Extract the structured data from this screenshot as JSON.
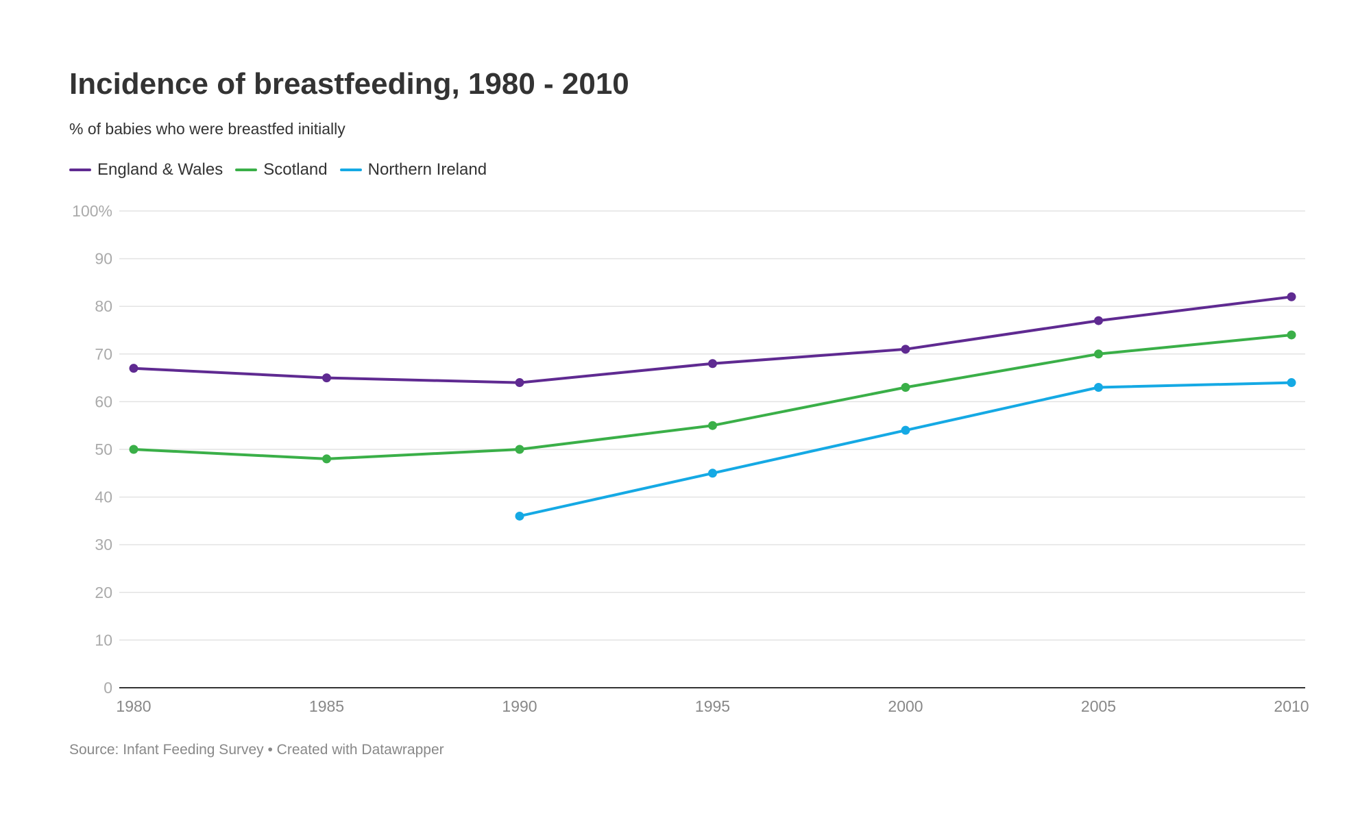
{
  "header": {
    "title": "Incidence of breastfeeding, 1980 - 2010",
    "subtitle": "% of babies who were breastfed initially"
  },
  "footer": {
    "source": "Source: Infant Feeding Survey • Created with Datawrapper"
  },
  "colors": {
    "england_wales": "#5f2a91",
    "scotland": "#3aaf48",
    "northern_ireland": "#15a9e4",
    "grid": "#e3e3e3",
    "axis": "#333333",
    "tick_label": "#aaaaaa",
    "x_tick_label": "#888888"
  },
  "chart_data": {
    "type": "line",
    "title": "Incidence of breastfeeding, 1980 - 2010",
    "subtitle": "% of babies who were breastfed initially",
    "x": [
      1980,
      1985,
      1990,
      1995,
      2000,
      2005,
      2010
    ],
    "x_tick_labels": [
      "1980",
      "1985",
      "1990",
      "1995",
      "2000",
      "2005",
      "2010"
    ],
    "y_ticks": [
      0,
      10,
      20,
      30,
      40,
      50,
      60,
      70,
      80,
      90,
      100
    ],
    "y_tick_labels": [
      "0",
      "10",
      "20",
      "30",
      "40",
      "50",
      "60",
      "70",
      "80",
      "90",
      "100%"
    ],
    "ylim": [
      0,
      100
    ],
    "xlim": [
      1980,
      2010
    ],
    "grid": true,
    "legend": "top-left",
    "series": [
      {
        "name": "England & Wales",
        "color": "#5f2a91",
        "values": [
          67,
          65,
          64,
          68,
          71,
          77,
          82
        ]
      },
      {
        "name": "Scotland",
        "color": "#3aaf48",
        "values": [
          50,
          48,
          50,
          55,
          63,
          70,
          74
        ]
      },
      {
        "name": "Northern Ireland",
        "color": "#15a9e4",
        "values": [
          null,
          null,
          36,
          45,
          54,
          63,
          64
        ]
      }
    ]
  }
}
